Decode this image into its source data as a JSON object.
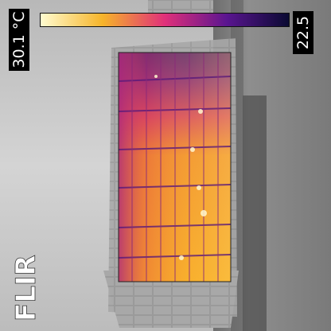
{
  "overlay": {
    "max_temp": "30.1 °C",
    "min_temp": "22.5",
    "brand": "FLIR"
  },
  "palette": {
    "scale_hot": "#fffcd0",
    "scale_warm": "#f6b42a",
    "scale_mid": "#e0307a",
    "scale_cool": "#5a1590",
    "scale_cold": "#0a0a32",
    "wall": "#8a8a8a",
    "sky": "#c8c8c8",
    "label_bg": "#000000",
    "label_fg": "#ffffff"
  }
}
